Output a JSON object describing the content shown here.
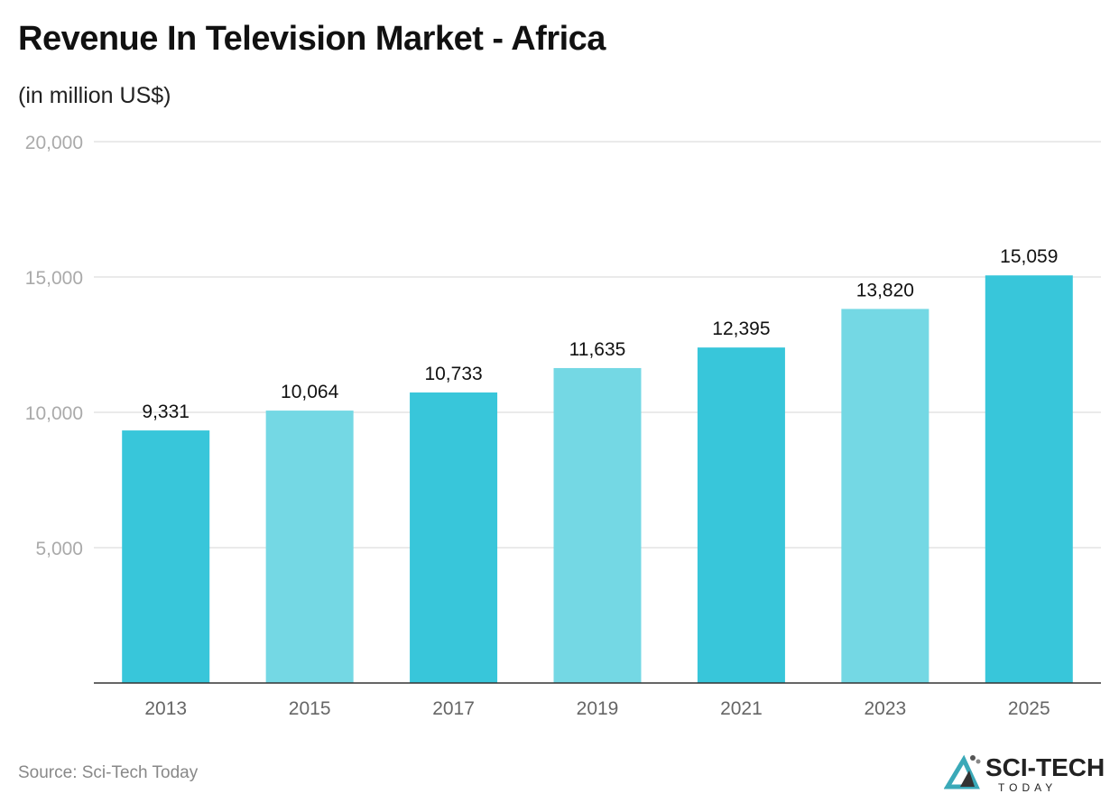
{
  "title": "Revenue In Television Market - Africa",
  "subtitle": "(in million US$)",
  "source": "Source: Sci-Tech Today",
  "logo": {
    "main": "SCI-TECH",
    "sub": "TODAY"
  },
  "colors": {
    "bar_dark": "#38C6DA",
    "bar_light": "#74D8E4",
    "grid": "#dddddd",
    "axis": "#333333"
  },
  "chart_data": {
    "type": "bar",
    "categories": [
      "2013",
      "2015",
      "2017",
      "2019",
      "2021",
      "2023",
      "2025"
    ],
    "values": [
      9331,
      10064,
      10733,
      11635,
      12395,
      13820,
      15059
    ],
    "value_labels": [
      "9,331",
      "10,064",
      "10,733",
      "11,635",
      "12,395",
      "13,820",
      "15,059"
    ],
    "ylim": [
      0,
      20000
    ],
    "yticks": [
      5000,
      10000,
      15000,
      20000
    ],
    "ytick_labels": [
      "5,000",
      "10,000",
      "15,000",
      "20,000"
    ],
    "grid": true,
    "xlabel": "",
    "ylabel": ""
  }
}
